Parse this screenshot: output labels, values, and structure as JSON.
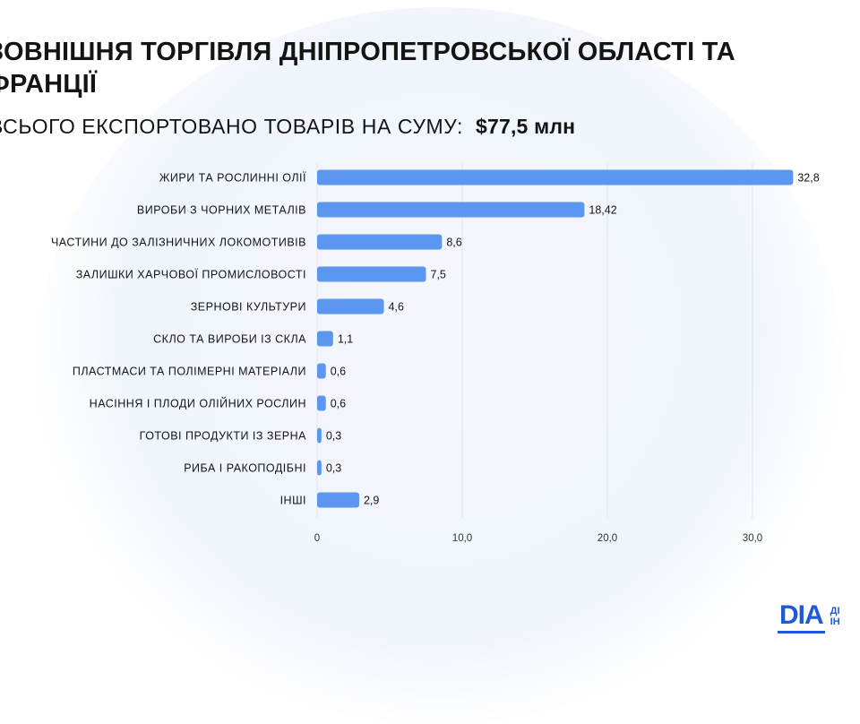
{
  "title": "ЗОВНІШНЯ ТОРГІВЛЯ ДНІПРОПЕТРОВСЬКОЇ ОБЛАСТІ ТА\nФРАНЦІЇ",
  "subtitle_label": "ВСЬОГО ЕКСПОРТОВАНО ТОВАРІВ НА СУМУ:",
  "subtitle_value": "$77,5 млн",
  "logo": {
    "mark": "DIA",
    "line1": "ДІ",
    "line2": "ІН"
  },
  "colors": {
    "bar": "#5b96f0",
    "grid": "#e1e4ea",
    "text": "#141414"
  },
  "chart_data": {
    "type": "bar",
    "orientation": "horizontal",
    "categories": [
      "ЖИРИ ТА РОСЛИННІ ОЛІЇ",
      "ВИРОБИ З ЧОРНИХ МЕТАЛІВ",
      "ЧАСТИНИ ДО ЗАЛІЗНИЧНИХ ЛОКОМОТИВІВ",
      "ЗАЛИШКИ ХАРЧОВОЇ ПРОМИСЛОВОСТІ",
      "ЗЕРНОВІ КУЛЬТУРИ",
      "СКЛО ТА ВИРОБИ ІЗ СКЛА",
      "ПЛАСТМАСИ ТА ПОЛІМЕРНІ МАТЕРІАЛИ",
      "НАСІННЯ І ПЛОДИ ОЛІЙНИХ РОСЛИН",
      "ГОТОВІ ПРОДУКТИ ІЗ ЗЕРНА",
      "РИБА І РАКОПОДІБНІ",
      "ІНШІ"
    ],
    "values": [
      32.8,
      18.42,
      8.6,
      7.5,
      4.6,
      1.1,
      0.6,
      0.6,
      0.3,
      0.3,
      2.9
    ],
    "value_labels": [
      "32,8",
      "18,42",
      "8,6",
      "7,5",
      "4,6",
      "1,1",
      "0,6",
      "0,6",
      "0,3",
      "0,3",
      "2,9"
    ],
    "xticks": [
      0,
      10,
      20,
      30
    ],
    "xtick_labels": [
      "0",
      "10,0",
      "20,0",
      "30,0"
    ],
    "xlim": [
      0,
      34
    ],
    "grid": true,
    "xlabel": "",
    "ylabel": ""
  }
}
